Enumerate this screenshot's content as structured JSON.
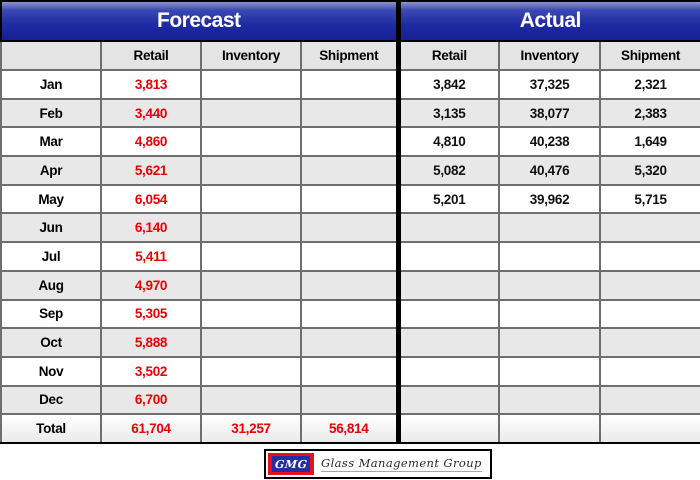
{
  "table": {
    "sections": [
      {
        "title": "Forecast"
      },
      {
        "title": "Actual"
      }
    ],
    "columns": [
      "Retail",
      "Inventory",
      "Shipment"
    ],
    "rows": [
      {
        "label": "Jan",
        "forecast": [
          "3,813",
          "",
          ""
        ],
        "actual": [
          "3,842",
          "37,325",
          "2,321"
        ],
        "total": false
      },
      {
        "label": "Feb",
        "forecast": [
          "3,440",
          "",
          ""
        ],
        "actual": [
          "3,135",
          "38,077",
          "2,383"
        ],
        "total": false
      },
      {
        "label": "Mar",
        "forecast": [
          "4,860",
          "",
          ""
        ],
        "actual": [
          "4,810",
          "40,238",
          "1,649"
        ],
        "total": false
      },
      {
        "label": "Apr",
        "forecast": [
          "5,621",
          "",
          ""
        ],
        "actual": [
          "5,082",
          "40,476",
          "5,320"
        ],
        "total": false
      },
      {
        "label": "May",
        "forecast": [
          "6,054",
          "",
          ""
        ],
        "actual": [
          "5,201",
          "39,962",
          "5,715"
        ],
        "total": false
      },
      {
        "label": "Jun",
        "forecast": [
          "6,140",
          "",
          ""
        ],
        "actual": [
          "",
          "",
          ""
        ],
        "total": false
      },
      {
        "label": "Jul",
        "forecast": [
          "5,411",
          "",
          ""
        ],
        "actual": [
          "",
          "",
          ""
        ],
        "total": false
      },
      {
        "label": "Aug",
        "forecast": [
          "4,970",
          "",
          ""
        ],
        "actual": [
          "",
          "",
          ""
        ],
        "total": false
      },
      {
        "label": "Sep",
        "forecast": [
          "5,305",
          "",
          ""
        ],
        "actual": [
          "",
          "",
          ""
        ],
        "total": false
      },
      {
        "label": "Oct",
        "forecast": [
          "5,888",
          "",
          ""
        ],
        "actual": [
          "",
          "",
          ""
        ],
        "total": false
      },
      {
        "label": "Nov",
        "forecast": [
          "3,502",
          "",
          ""
        ],
        "actual": [
          "",
          "",
          ""
        ],
        "total": false
      },
      {
        "label": "Dec",
        "forecast": [
          "6,700",
          "",
          ""
        ],
        "actual": [
          "",
          "",
          ""
        ],
        "total": false
      },
      {
        "label": "Total",
        "forecast": [
          "61,704",
          "31,257",
          "56,814"
        ],
        "actual": [
          "",
          "",
          ""
        ],
        "total": true
      }
    ]
  },
  "logo": {
    "abbr": "GMG",
    "text": "Glass Management Group"
  },
  "colors": {
    "header_blue": "#1e2ba3",
    "forecast_value_red": "#ee0000",
    "alt_row_gray": "#e8e8e8",
    "logo_red": "#e8101c",
    "logo_blue": "#232e9f"
  },
  "chart_data": {
    "type": "table",
    "title": "Forecast vs Actual by Month",
    "sections": [
      "Forecast",
      "Actual"
    ],
    "columns": [
      "Retail",
      "Inventory",
      "Shipment"
    ],
    "row_labels": [
      "Jan",
      "Feb",
      "Mar",
      "Apr",
      "May",
      "Jun",
      "Jul",
      "Aug",
      "Sep",
      "Oct",
      "Nov",
      "Dec",
      "Total"
    ],
    "forecast": {
      "Retail": [
        3813,
        3440,
        4860,
        5621,
        6054,
        6140,
        5411,
        4970,
        5305,
        5888,
        3502,
        6700,
        61704
      ],
      "Inventory": [
        null,
        null,
        null,
        null,
        null,
        null,
        null,
        null,
        null,
        null,
        null,
        null,
        31257
      ],
      "Shipment": [
        null,
        null,
        null,
        null,
        null,
        null,
        null,
        null,
        null,
        null,
        null,
        null,
        56814
      ]
    },
    "actual": {
      "Retail": [
        3842,
        3135,
        4810,
        5082,
        5201,
        null,
        null,
        null,
        null,
        null,
        null,
        null,
        null
      ],
      "Inventory": [
        37325,
        38077,
        40238,
        40476,
        39962,
        null,
        null,
        null,
        null,
        null,
        null,
        null,
        null
      ],
      "Shipment": [
        2321,
        2383,
        1649,
        5320,
        5715,
        null,
        null,
        null,
        null,
        null,
        null,
        null,
        null
      ]
    }
  }
}
